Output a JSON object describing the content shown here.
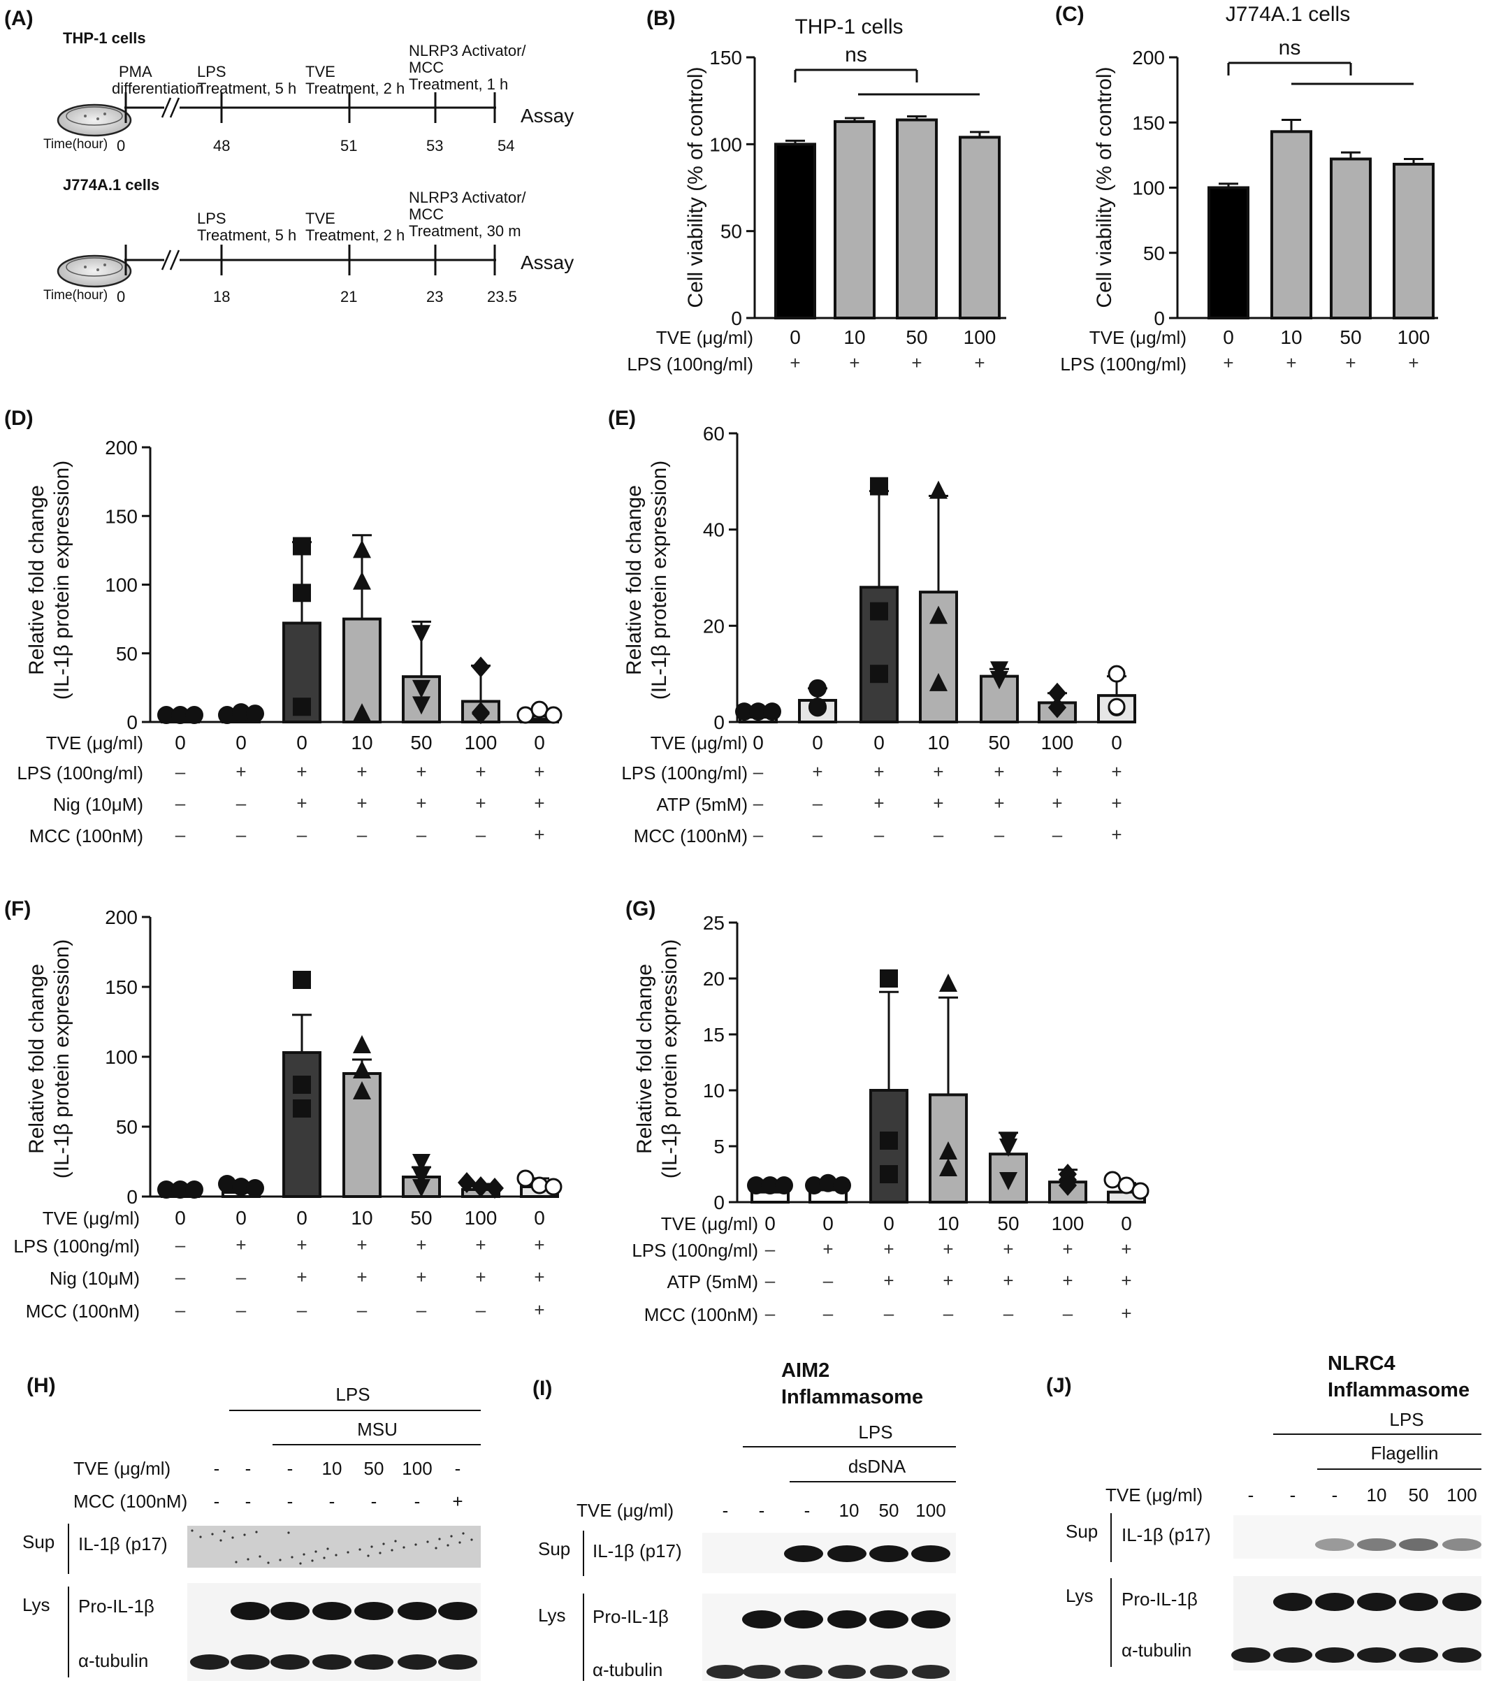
{
  "panel_a": {
    "label": "(A)",
    "thp1": {
      "title": "THP-1 cells",
      "assay": "Assay",
      "time_label": "Time(hour)",
      "times": [
        "0",
        "48",
        "51",
        "53",
        "54"
      ],
      "steps": [
        {
          "line1": "PMA",
          "line2": "differentiation",
          "line3": ""
        },
        {
          "line1": "LPS",
          "line2": "Treatment, 5 h",
          "line3": ""
        },
        {
          "line1": "TVE",
          "line2": "Treatment, 2 h",
          "line3": ""
        },
        {
          "line1": "NLRP3 Activator/",
          "line2": "MCC",
          "line3": "Treatment, 1 h"
        }
      ]
    },
    "j774": {
      "title": "J774A.1 cells",
      "assay": "Assay",
      "time_label": "Time(hour)",
      "times": [
        "0",
        "18",
        "21",
        "23",
        "23.5"
      ],
      "steps": [
        {
          "line1": "LPS",
          "line2": "Treatment, 5 h",
          "line3": ""
        },
        {
          "line1": "TVE",
          "line2": "Treatment, 2 h",
          "line3": ""
        },
        {
          "line1": "NLRP3 Activator/",
          "line2": "MCC",
          "line3": "Treatment, 30 m"
        }
      ]
    }
  },
  "chart_data": [
    {
      "id": "B",
      "label": "(B)",
      "type": "bar",
      "title": "THP-1 cells",
      "ylabel": "Cell viability (% of control)",
      "ylim": [
        0,
        150
      ],
      "yticks": [
        0,
        50,
        100,
        150
      ],
      "categories": [
        "0",
        "10",
        "50",
        "100"
      ],
      "values": [
        100,
        113,
        114,
        104
      ],
      "errors": [
        2,
        2,
        2,
        3
      ],
      "bar_colors": [
        "#000000",
        "#b0b0b0",
        "#b0b0b0",
        "#b0b0b0"
      ],
      "significance": "ns",
      "conditions": [
        {
          "name": "TVE (μg/ml)",
          "values": [
            "0",
            "10",
            "50",
            "100"
          ]
        },
        {
          "name": "LPS (100ng/ml)",
          "values": [
            "+",
            "+",
            "+",
            "+"
          ]
        }
      ]
    },
    {
      "id": "C",
      "label": "(C)",
      "type": "bar",
      "title": "J774A.1 cells",
      "ylabel": "Cell viability (% of control)",
      "ylim": [
        0,
        200
      ],
      "yticks": [
        0,
        50,
        100,
        150,
        200
      ],
      "categories": [
        "0",
        "10",
        "50",
        "100"
      ],
      "values": [
        100,
        143,
        122,
        118
      ],
      "errors": [
        3,
        9,
        5,
        4
      ],
      "bar_colors": [
        "#000000",
        "#b0b0b0",
        "#b0b0b0",
        "#b0b0b0"
      ],
      "significance": "ns",
      "conditions": [
        {
          "name": "TVE (μg/ml)",
          "values": [
            "0",
            "10",
            "50",
            "100"
          ]
        },
        {
          "name": "LPS (100ng/ml)",
          "values": [
            "+",
            "+",
            "+",
            "+"
          ]
        }
      ]
    },
    {
      "id": "D",
      "label": "(D)",
      "type": "bar",
      "ylabel": "Relative fold change (IL-1β protein expression)",
      "ylim": [
        0,
        200
      ],
      "yticks": [
        0,
        50,
        100,
        150,
        200
      ],
      "categories": [
        "0",
        "0",
        "0",
        "10",
        "50",
        "100",
        "0"
      ],
      "values": [
        1,
        2,
        72,
        75,
        33,
        15,
        2
      ],
      "errors": [
        0.5,
        1,
        59,
        61,
        40,
        26,
        2
      ],
      "points": [
        [
          1,
          1,
          1
        ],
        [
          1,
          3,
          2
        ],
        [
          128,
          94,
          7
        ],
        [
          125,
          102,
          2
        ],
        [
          65,
          25,
          9
        ],
        [
          40,
          2,
          3
        ],
        [
          1,
          5,
          1
        ]
      ],
      "markers": [
        "circle",
        "circle",
        "square",
        "triangle",
        "triangle-down",
        "diamond",
        "circle-open"
      ],
      "bar_colors": [
        "#ffffff",
        "#ffffff",
        "#3a3a3a",
        "#b0b0b0",
        "#b0b0b0",
        "#b0b0b0",
        "#e6e6e6"
      ],
      "conditions": [
        {
          "name": "TVE (μg/ml)",
          "values": [
            "0",
            "0",
            "0",
            "10",
            "50",
            "100",
            "0"
          ]
        },
        {
          "name": "LPS (100ng/ml)",
          "values": [
            "–",
            "+",
            "+",
            "+",
            "+",
            "+",
            "+"
          ]
        },
        {
          "name": "Nig (10μM)",
          "values": [
            "–",
            "–",
            "+",
            "+",
            "+",
            "+",
            "+"
          ]
        },
        {
          "name": "MCC (100nM)",
          "values": [
            "–",
            "–",
            "–",
            "–",
            "–",
            "–",
            "+"
          ]
        }
      ]
    },
    {
      "id": "E",
      "label": "(E)",
      "type": "bar",
      "ylabel": "Relative fold change (IL-1β protein expression)",
      "ylim": [
        0,
        60
      ],
      "yticks": [
        0,
        20,
        40,
        60
      ],
      "categories": [
        "0",
        "0",
        "0",
        "10",
        "50",
        "100",
        "0"
      ],
      "values": [
        1,
        4.5,
        28,
        27,
        9.5,
        4,
        5.5
      ],
      "errors": [
        0.3,
        2.5,
        20,
        20,
        1.5,
        2,
        4
      ],
      "points": [
        [
          1,
          1,
          1
        ],
        [
          7,
          3,
          2
        ],
        [
          49,
          23,
          10
        ],
        [
          48,
          22,
          8
        ],
        [
          11,
          9,
          9
        ],
        [
          6,
          3,
          3
        ],
        [
          10,
          3,
          2
        ]
      ],
      "markers": [
        "circle",
        "circle",
        "square",
        "triangle",
        "triangle-down",
        "diamond",
        "circle-open"
      ],
      "bar_colors": [
        "#ffffff",
        "#e6e6e6",
        "#3a3a3a",
        "#b0b0b0",
        "#b0b0b0",
        "#b0b0b0",
        "#e6e6e6"
      ],
      "conditions": [
        {
          "name": "TVE (μg/ml)",
          "values": [
            "0",
            "0",
            "0",
            "10",
            "50",
            "100",
            "0"
          ]
        },
        {
          "name": "LPS (100ng/ml)",
          "values": [
            "–",
            "+",
            "+",
            "+",
            "+",
            "+",
            "+"
          ]
        },
        {
          "name": "ATP (5mM)",
          "values": [
            "–",
            "–",
            "+",
            "+",
            "+",
            "+",
            "+"
          ]
        },
        {
          "name": "MCC (100nM)",
          "values": [
            "–",
            "–",
            "–",
            "–",
            "–",
            "–",
            "+"
          ]
        }
      ]
    },
    {
      "id": "F",
      "label": "(F)",
      "type": "bar",
      "ylabel": "Relative fold change (IL-1β protein expression)",
      "ylim": [
        0,
        200
      ],
      "yticks": [
        0,
        50,
        100,
        150,
        200
      ],
      "categories": [
        "0",
        "0",
        "0",
        "10",
        "50",
        "100",
        "0"
      ],
      "values": [
        1,
        3,
        103,
        88,
        14,
        5,
        7
      ],
      "errors": [
        0.5,
        1.5,
        27,
        10,
        7,
        4,
        6
      ],
      "points": [
        [
          1,
          1,
          1
        ],
        [
          5,
          3,
          2
        ],
        [
          155,
          80,
          63
        ],
        [
          108,
          90,
          75
        ],
        [
          25,
          15,
          3
        ],
        [
          10,
          3,
          2
        ],
        [
          13,
          4,
          3
        ]
      ],
      "markers": [
        "circle",
        "circle",
        "square",
        "triangle",
        "triangle-down",
        "diamond",
        "circle-open"
      ],
      "bar_colors": [
        "#ffffff",
        "#ffffff",
        "#3a3a3a",
        "#b0b0b0",
        "#b0b0b0",
        "#b0b0b0",
        "#e6e6e6"
      ],
      "conditions": [
        {
          "name": "TVE (μg/ml)",
          "values": [
            "0",
            "0",
            "0",
            "10",
            "50",
            "100",
            "0"
          ]
        },
        {
          "name": "LPS (100ng/ml)",
          "values": [
            "–",
            "+",
            "+",
            "+",
            "+",
            "+",
            "+"
          ]
        },
        {
          "name": "Nig (10μM)",
          "values": [
            "–",
            "–",
            "+",
            "+",
            "+",
            "+",
            "+"
          ]
        },
        {
          "name": "MCC (100nM)",
          "values": [
            "–",
            "–",
            "–",
            "–",
            "–",
            "–",
            "+"
          ]
        }
      ]
    },
    {
      "id": "G",
      "label": "(G)",
      "type": "bar",
      "ylabel": "Relative fold change (IL-1β protein expression)",
      "ylim": [
        0,
        25
      ],
      "yticks": [
        0,
        5,
        10,
        15,
        20,
        25
      ],
      "categories": [
        "0",
        "0",
        "0",
        "10",
        "50",
        "100",
        "0"
      ],
      "values": [
        0.9,
        1.1,
        10,
        9.6,
        4.3,
        1.8,
        0.9
      ],
      "errors": [
        0.2,
        0.3,
        8.8,
        8.7,
        1.9,
        1.1,
        0.8
      ],
      "points": [
        [
          1,
          1,
          1
        ],
        [
          1.5,
          1.2,
          1
        ],
        [
          20,
          5.5,
          2.5
        ],
        [
          19.5,
          4.5,
          3
        ],
        [
          5.5,
          5,
          2
        ],
        [
          2.5,
          2,
          1
        ],
        [
          2,
          1,
          0.5
        ]
      ],
      "markers": [
        "circle",
        "circle",
        "square",
        "triangle",
        "triangle-down",
        "diamond",
        "circle-open"
      ],
      "bar_colors": [
        "#ffffff",
        "#ffffff",
        "#3a3a3a",
        "#b0b0b0",
        "#b0b0b0",
        "#b0b0b0",
        "#e6e6e6"
      ],
      "conditions": [
        {
          "name": "TVE (μg/ml)",
          "values": [
            "0",
            "0",
            "0",
            "10",
            "50",
            "100",
            "0"
          ]
        },
        {
          "name": "LPS (100ng/ml)",
          "values": [
            "–",
            "+",
            "+",
            "+",
            "+",
            "+",
            "+"
          ]
        },
        {
          "name": "ATP (5mM)",
          "values": [
            "–",
            "–",
            "+",
            "+",
            "+",
            "+",
            "+"
          ]
        },
        {
          "name": "MCC (100nM)",
          "values": [
            "–",
            "–",
            "–",
            "–",
            "–",
            "–",
            "+"
          ]
        }
      ]
    }
  ],
  "blots": {
    "H": {
      "label": "(H)",
      "title": "",
      "header1": "LPS",
      "header2": "MSU",
      "tve_label": "TVE (μg/ml)",
      "tve_values": [
        "-",
        "-",
        "-",
        "10",
        "50",
        "100",
        "-"
      ],
      "mcc_label": "MCC (100nM)",
      "mcc_values": [
        "-",
        "-",
        "-",
        "-",
        "-",
        "-",
        "+"
      ],
      "sup": "Sup",
      "lys": "Lys",
      "band1": "IL-1β (p17)",
      "band2": "Pro-IL-1β",
      "band3": "α-tubulin"
    },
    "I": {
      "label": "(I)",
      "title1": "AIM2",
      "title2": "Inflammasome",
      "header1": "LPS",
      "header2": "dsDNA",
      "tve_label": "TVE (μg/ml)",
      "tve_values": [
        "-",
        "-",
        "-",
        "10",
        "50",
        "100"
      ],
      "sup": "Sup",
      "lys": "Lys",
      "band1": "IL-1β (p17)",
      "band2": "Pro-IL-1β",
      "band3": "α-tubulin"
    },
    "J": {
      "label": "(J)",
      "title1": "NLRC4",
      "title2": "Inflammasome",
      "header1": "LPS",
      "header2": "Flagellin",
      "tve_label": "TVE (μg/ml)",
      "tve_values": [
        "-",
        "-",
        "-",
        "10",
        "50",
        "100"
      ],
      "sup": "Sup",
      "lys": "Lys",
      "band1": "IL-1β (p17)",
      "band2": "Pro-IL-1β",
      "band3": "α-tubulin"
    }
  }
}
